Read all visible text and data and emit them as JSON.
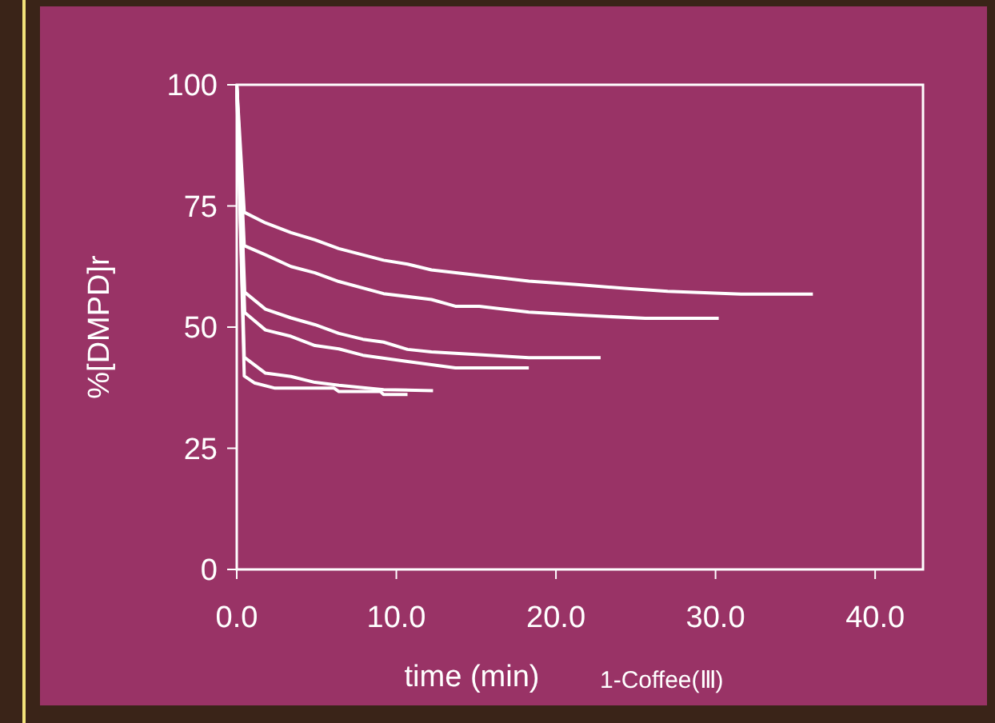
{
  "chart_data": {
    "type": "line",
    "xlabel": "time (min)",
    "ylabel": "%[DMPD]r",
    "annotations": [
      "1-Coffee(Ⅲ)"
    ],
    "xlim": [
      0,
      43
    ],
    "ylim": [
      0,
      100
    ],
    "xticks": [
      {
        "value": 0,
        "label": "0.0"
      },
      {
        "value": 10,
        "label": "10.0"
      },
      {
        "value": 20,
        "label": "20.0"
      },
      {
        "value": 30,
        "label": "30.0"
      },
      {
        "value": 40,
        "label": "40.0"
      }
    ],
    "yticks": [
      0,
      25,
      50,
      75,
      100
    ],
    "marker": "none",
    "line_style": "solid",
    "series": [
      {
        "color": "#ffffff",
        "x": [
          0,
          0.47,
          1.8,
          3.4,
          4.9,
          6.4,
          9.2,
          10.7,
          12.2,
          18.3,
          21.3,
          24.3,
          27.0,
          31.6,
          36.1
        ],
        "values": [
          100,
          73.7,
          71.5,
          69.5,
          68,
          66.2,
          63.8,
          63,
          61.8,
          59.5,
          58.8,
          58,
          57.4,
          56.8,
          56.8
        ]
      },
      {
        "color": "#ffffff",
        "x": [
          0,
          0.47,
          1.8,
          3.4,
          4.9,
          6.4,
          9.2,
          12.2,
          13.7,
          15.2,
          18.3,
          21.3,
          25.6,
          30.2
        ],
        "values": [
          100,
          66.8,
          64.9,
          62.5,
          61.2,
          59.4,
          56.9,
          55.7,
          54.3,
          54.3,
          53.1,
          52.5,
          51.8,
          51.8
        ]
      },
      {
        "color": "#ffffff",
        "x": [
          0,
          0.5,
          1.8,
          3.4,
          4.9,
          6.4,
          7.9,
          9.2,
          10.7,
          12.2,
          15.2,
          18.3,
          22.8
        ],
        "values": [
          100,
          57.2,
          53.7,
          51.9,
          50.5,
          48.7,
          47.5,
          46.9,
          45.4,
          44.9,
          44.3,
          43.7,
          43.7
        ]
      },
      {
        "color": "#ffffff",
        "x": [
          0,
          0.5,
          1.8,
          3.4,
          4.9,
          6.4,
          7.9,
          10.7,
          13.7,
          18.3
        ],
        "values": [
          100,
          53,
          49.4,
          48.1,
          46.2,
          45.5,
          44.2,
          42.9,
          41.6,
          41.6
        ]
      },
      {
        "color": "#ffffff",
        "x": [
          0,
          0.47,
          1.8,
          3.4,
          4.9,
          6.4,
          9.2,
          12.3
        ],
        "values": [
          100,
          43.8,
          40.5,
          39.8,
          38.6,
          38,
          37.1,
          36.9
        ]
      },
      {
        "color": "#ffffff",
        "x": [
          0,
          0.47,
          1.1,
          2.4,
          6.1,
          6.4,
          9.0,
          9.2,
          10.7
        ],
        "values": [
          100,
          39.9,
          38.5,
          37.4,
          37.4,
          36.7,
          36.7,
          36.1,
          36.1
        ]
      }
    ]
  }
}
